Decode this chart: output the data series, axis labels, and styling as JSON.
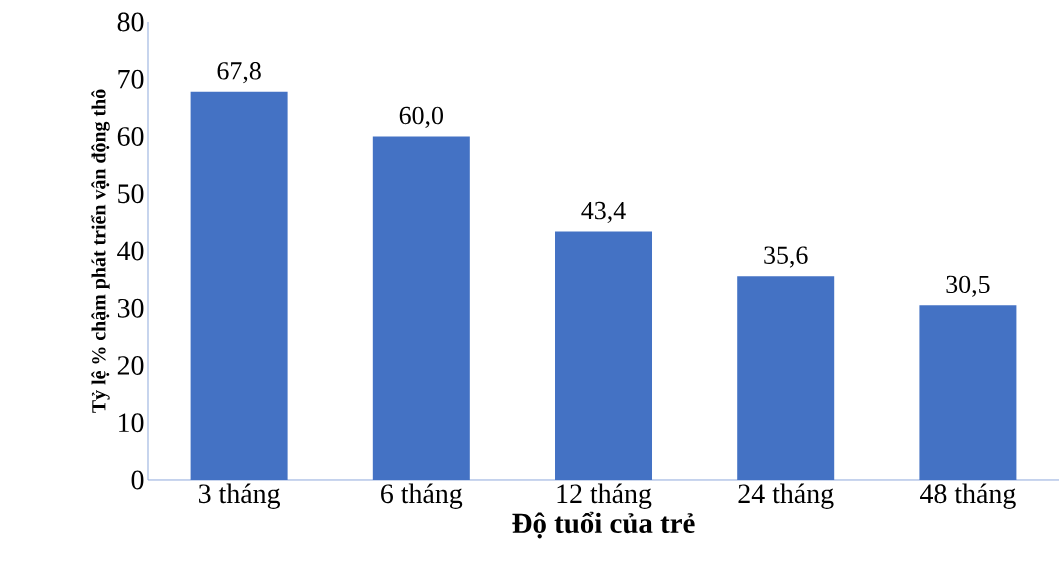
{
  "chart_data": {
    "type": "bar",
    "xlabel": "Độ tuổi của trẻ",
    "ylabel": "Tỷ lệ % chậm phát triển vận động thô",
    "categories": [
      "3 tháng",
      "6 tháng",
      "12 tháng",
      "24 tháng",
      "48 tháng"
    ],
    "values": [
      67.8,
      60.0,
      43.4,
      35.6,
      30.5
    ],
    "value_labels": [
      "67,8",
      "60,0",
      "43,4",
      "35,6",
      "30,5"
    ],
    "color": "#4472c4",
    "ylim": [
      0,
      80
    ],
    "yticks": [
      0,
      10,
      20,
      30,
      40,
      50,
      60,
      70,
      80
    ],
    "grid": false
  }
}
